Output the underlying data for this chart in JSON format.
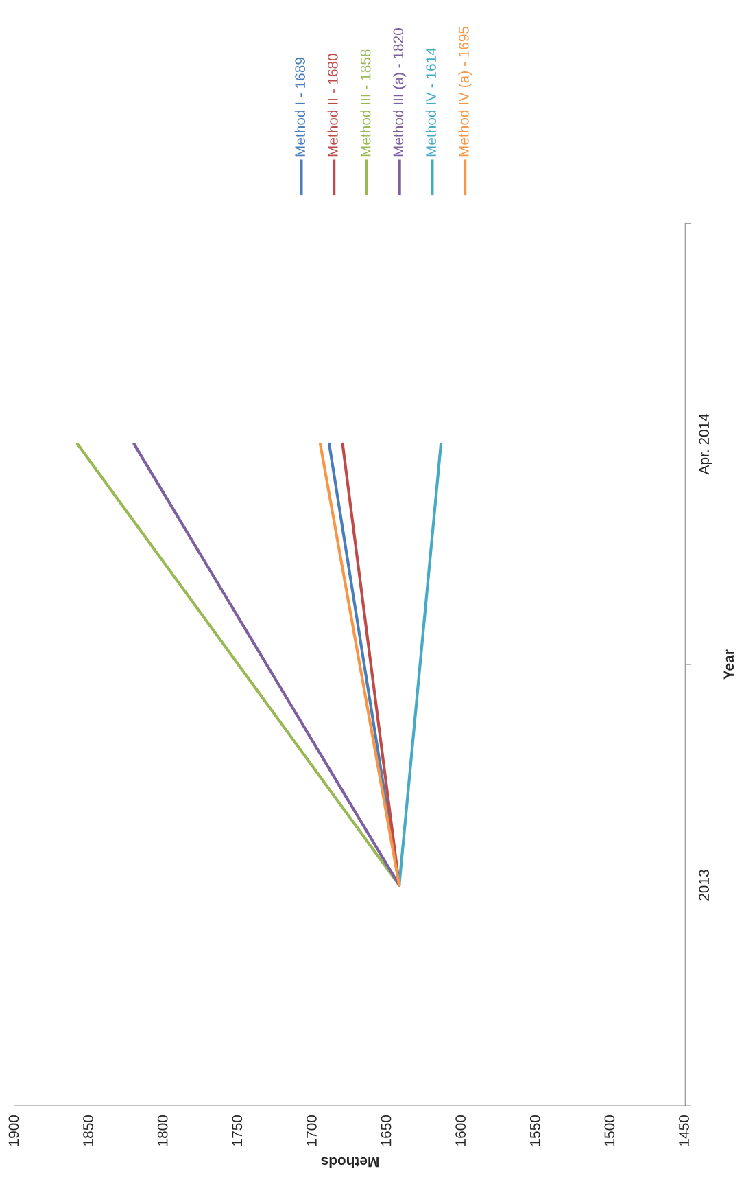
{
  "chart_data": {
    "type": "line",
    "orientation": "horizontal",
    "xlabel": "Methods",
    "ylabel": "Year",
    "categories": [
      "Apr. 2014",
      "2013"
    ],
    "series": [
      {
        "name": "Method I - 1689",
        "color": "#4a7ebb",
        "values": [
          1689,
          1642
        ]
      },
      {
        "name": "Method II - 1680",
        "color": "#be4b48",
        "values": [
          1680,
          1642
        ]
      },
      {
        "name": "Method III - 1858",
        "color": "#98b954",
        "values": [
          1858,
          1642
        ]
      },
      {
        "name": "Method III (a) - 1820",
        "color": "#7d60a0",
        "values": [
          1820,
          1642
        ]
      },
      {
        "name": "Method IV - 1614",
        "color": "#46aac5",
        "values": [
          1614,
          1642
        ]
      },
      {
        "name": "Method IV (a) - 1695",
        "color": "#f79646",
        "values": [
          1695,
          1642
        ]
      }
    ],
    "xlim": [
      1900,
      1450
    ],
    "xticks": [
      1900,
      1850,
      1800,
      1750,
      1700,
      1650,
      1600,
      1550,
      1500,
      1450
    ],
    "grid": false,
    "legend": "right",
    "marker": "none",
    "line_style": "solid"
  }
}
